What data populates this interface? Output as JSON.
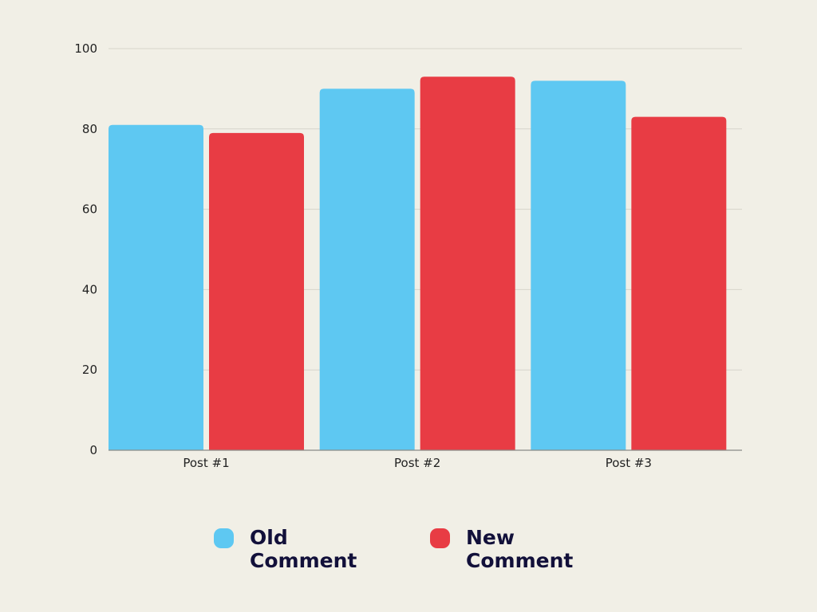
{
  "chart_data": {
    "type": "bar",
    "categories": [
      "Post #1",
      "Post #2",
      "Post #3"
    ],
    "series": [
      {
        "name": "Old Comment",
        "color": "#5ec8f2",
        "values": [
          81,
          90,
          92
        ]
      },
      {
        "name": "New Comment",
        "color": "#e83c44",
        "values": [
          79,
          93,
          83
        ]
      }
    ],
    "ylim": [
      0,
      100
    ],
    "yticks": [
      0,
      20,
      40,
      60,
      80,
      100
    ],
    "grid": true,
    "legend_position": "bottom"
  }
}
